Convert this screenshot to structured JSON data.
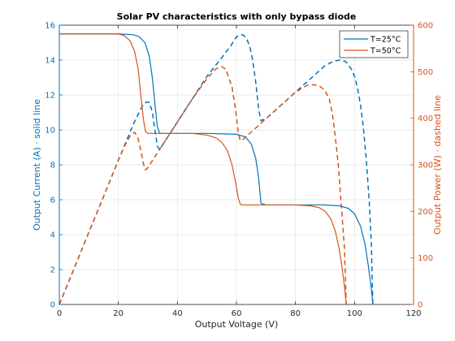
{
  "chart_data": {
    "type": "line",
    "title": "Solar PV characteristics with only bypass diode",
    "xlabel": "Output Voltage (V)",
    "ylabel_left": "Output Current (A) · solid line",
    "ylabel_right": "Output Power (W) · dashed line",
    "xlim": [
      0,
      120
    ],
    "ylim_left": [
      0,
      16
    ],
    "ylim_right": [
      0,
      600
    ],
    "x_ticks": [
      0,
      20,
      40,
      60,
      80,
      100,
      120
    ],
    "y_left_ticks": [
      0,
      2,
      4,
      6,
      8,
      10,
      12,
      14,
      16
    ],
    "y_right_ticks": [
      0,
      100,
      200,
      300,
      400,
      500,
      600
    ],
    "grid": true,
    "legend_position": "top-right",
    "left_axis_color": "#0072BD",
    "right_axis_color": "#D95319",
    "series": [
      {
        "name": "T=25°C",
        "color": "#0072BD",
        "current_x": [
          0,
          10,
          20,
          25,
          27,
          29,
          30.5,
          31.5,
          32.5,
          33.2,
          34,
          40,
          50,
          60,
          63,
          65,
          66.5,
          67.5,
          68.3,
          70,
          80,
          90,
          95,
          98,
          100,
          102,
          103.5,
          104.7,
          105.7,
          106.2
        ],
        "current_y": [
          15.5,
          15.5,
          15.5,
          15.45,
          15.35,
          15.0,
          14.2,
          13.0,
          11.3,
          10.2,
          9.8,
          9.8,
          9.8,
          9.75,
          9.6,
          9.2,
          8.4,
          7.3,
          5.8,
          5.7,
          5.7,
          5.7,
          5.65,
          5.5,
          5.2,
          4.5,
          3.5,
          2.2,
          0.9,
          0
        ],
        "power_x": [
          0,
          5,
          10,
          15,
          20,
          25,
          28,
          29.5,
          30.5,
          31.5,
          32.5,
          33.2,
          34,
          40,
          50,
          55,
          58,
          60,
          61.5,
          62.5,
          63.5,
          64.5,
          65.5,
          66.5,
          67.5,
          68.3,
          70,
          80,
          90,
          93,
          95,
          97,
          99,
          100,
          101,
          102,
          103,
          104,
          105,
          105.7,
          106.2
        ],
        "power_y": [
          0,
          77,
          155,
          232,
          310,
          386,
          425,
          435,
          434,
          414,
          370,
          340,
          333,
          392,
          490,
          530,
          555,
          575,
          580,
          578,
          570,
          555,
          525,
          480,
          420,
          395,
          399,
          456,
          513,
          523,
          525,
          522,
          505,
          490,
          465,
          430,
          380,
          310,
          220,
          130,
          0
        ]
      },
      {
        "name": "T=50°C",
        "color": "#D95319",
        "current_x": [
          0,
          10,
          20,
          22,
          24,
          25.5,
          26.7,
          27.6,
          28.5,
          29.2,
          30,
          35,
          40,
          45,
          50,
          53,
          55,
          57,
          58.5,
          59.7,
          60.6,
          61.3,
          62,
          70,
          80,
          85,
          88,
          90,
          92,
          93.5,
          94.8,
          95.8,
          96.6,
          97.2
        ],
        "current_y": [
          15.5,
          15.5,
          15.5,
          15.4,
          15.1,
          14.5,
          13.5,
          12.0,
          10.6,
          9.9,
          9.8,
          9.8,
          9.8,
          9.8,
          9.7,
          9.55,
          9.3,
          8.8,
          8.0,
          7.0,
          6.1,
          5.75,
          5.7,
          5.7,
          5.7,
          5.65,
          5.55,
          5.35,
          4.9,
          4.2,
          3.2,
          2.1,
          1.0,
          0
        ],
        "power_x": [
          0,
          5,
          10,
          15,
          20,
          22,
          24,
          25.5,
          26.5,
          27.6,
          28.5,
          29.2,
          30,
          35,
          40,
          45,
          50,
          53,
          55,
          56.5,
          57.5,
          58.5,
          59.7,
          60.6,
          61.3,
          62,
          70,
          80,
          84,
          86,
          88,
          90,
          91.5,
          92.5,
          93.5,
          94.5,
          95.2,
          95.8,
          96.6,
          97.2
        ],
        "power_y": [
          0,
          77,
          155,
          232,
          310,
          339,
          362,
          370,
          360,
          331,
          302,
          289,
          294,
          343,
          392,
          441,
          485,
          506,
          511,
          505,
          485,
          468,
          418,
          370,
          352,
          353,
          399,
          456,
          471,
          472,
          470,
          460,
          440,
          410,
          360,
          300,
          240,
          190,
          120,
          0
        ]
      }
    ]
  }
}
